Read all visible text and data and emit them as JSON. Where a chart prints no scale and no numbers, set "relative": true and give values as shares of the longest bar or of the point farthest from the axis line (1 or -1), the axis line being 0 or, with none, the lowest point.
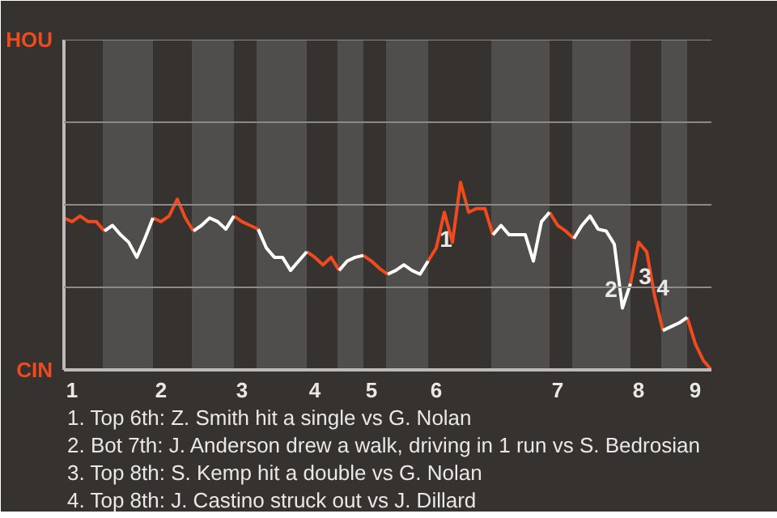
{
  "chart_data": {
    "type": "line",
    "relative": true,
    "marker": "none",
    "line_style": "solid",
    "ref_lines": [
      {
        "axis": "y",
        "value": 0.44,
        "color": "#8a8a8a"
      },
      {
        "axis": "y",
        "value": 0.88,
        "color": "#8a8a8a"
      },
      {
        "axis": "y",
        "value": 1.32,
        "color": "#8a8a8a"
      },
      {
        "axis": "y",
        "value": 1.76,
        "color": "#8a8a8a"
      }
    ],
    "categories": [
      null,
      "1",
      null,
      null,
      null,
      null,
      null,
      null,
      null,
      null,
      null,
      null,
      "2",
      null,
      null,
      null,
      null,
      null,
      null,
      null,
      null,
      null,
      "3",
      null,
      null,
      null,
      null,
      null,
      null,
      null,
      null,
      "4",
      null,
      null,
      null,
      null,
      null,
      null,
      "5",
      null,
      null,
      null,
      null,
      null,
      null,
      null,
      "6",
      null,
      null,
      null,
      null,
      null,
      null,
      null,
      null,
      null,
      null,
      null,
      null,
      null,
      null,
      "7",
      null,
      null,
      null,
      null,
      null,
      null,
      null,
      null,
      null,
      "8",
      null,
      null,
      null,
      null,
      null,
      null,
      "9",
      null,
      null
    ],
    "series": [
      {
        "color": "#f04a1e",
        "values": [
          0.81,
          0.79,
          0.82,
          0.79,
          0.79,
          0.74,
          null,
          null,
          null,
          null,
          null,
          0.81,
          0.79,
          0.82,
          0.91,
          0.81,
          0.74,
          null,
          null,
          null,
          null,
          0.82,
          0.79,
          0.77,
          0.75,
          null,
          null,
          null,
          null,
          null,
          0.63,
          0.6,
          0.56,
          0.6,
          0.53,
          null,
          null,
          0.61,
          0.58,
          0.54,
          0.51,
          null,
          null,
          null,
          null,
          0.58,
          0.65,
          0.84,
          0.68,
          1,
          0.84,
          0.86,
          0.86,
          0.72,
          null,
          null,
          null,
          null,
          null,
          null,
          0.84,
          0.77,
          0.74,
          0.7,
          null,
          null,
          null,
          null,
          null,
          null,
          0.46,
          0.68,
          0.63,
          0.39,
          0.21,
          null,
          null,
          0.28,
          0.14,
          0.05,
          0
        ]
      },
      {
        "color": "#ffffff",
        "values": [
          null,
          null,
          null,
          null,
          null,
          0.74,
          0.77,
          0.72,
          0.68,
          0.6,
          0.7,
          0.81,
          null,
          null,
          null,
          null,
          0.74,
          0.77,
          0.81,
          0.79,
          0.75,
          0.82,
          null,
          null,
          0.75,
          0.65,
          0.6,
          0.6,
          0.53,
          0.58,
          0.63,
          null,
          null,
          null,
          0.53,
          0.58,
          0.6,
          0.61,
          null,
          null,
          0.51,
          0.53,
          0.56,
          0.53,
          0.51,
          0.58,
          null,
          null,
          null,
          null,
          null,
          null,
          null,
          0.72,
          0.77,
          0.72,
          0.72,
          0.72,
          0.58,
          0.79,
          0.84,
          null,
          null,
          0.7,
          0.77,
          0.82,
          0.75,
          0.74,
          0.67,
          0.33,
          0.46,
          null,
          null,
          null,
          0.21,
          0.23,
          0.25,
          0.28,
          null,
          null,
          null
        ]
      }
    ],
    "annotations": [
      "HOU",
      "CIN",
      "1",
      "2",
      "3",
      "4",
      "1. Top 6th: Z. Smith hit a single vs G. Nolan",
      "2. Bot 7th: J. Anderson drew a walk, driving in 1 run vs S. Bedrosian",
      "3. Top 8th: S. Kemp hit a double vs G. Nolan",
      "4. Top 8th: J. Castino struck out vs J. Dillard"
    ]
  }
}
